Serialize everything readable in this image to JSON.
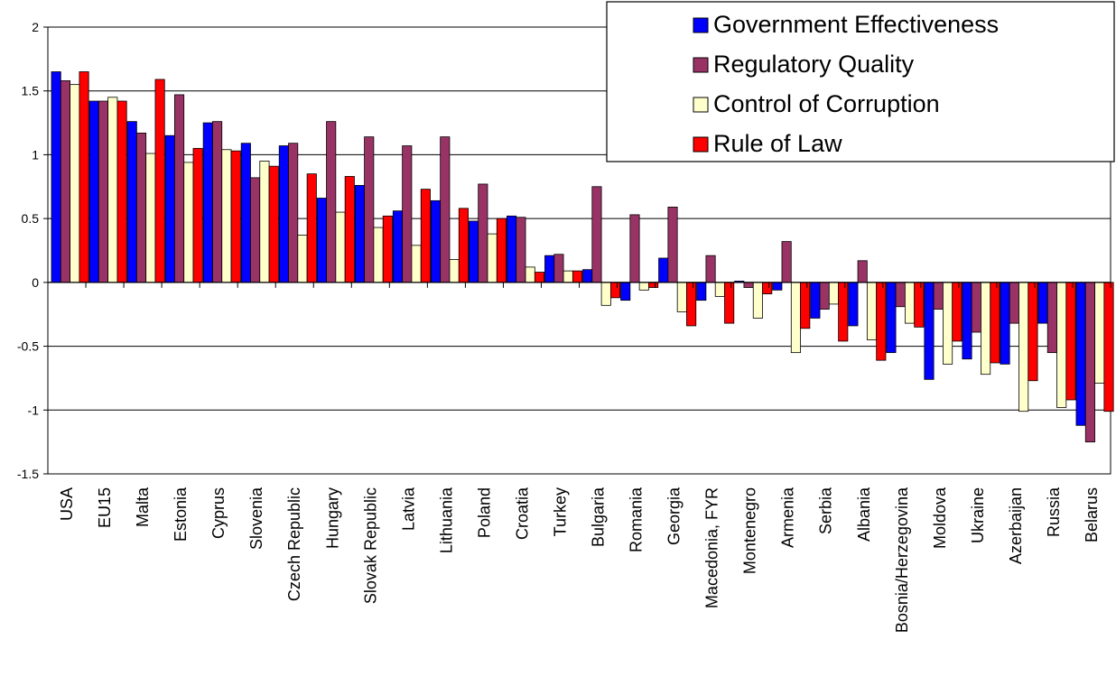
{
  "chart_data": {
    "type": "bar",
    "title": "",
    "xlabel": "",
    "ylabel": "",
    "ylim": [
      -1.5,
      2
    ],
    "yticks": [
      "2",
      "1.5",
      "1",
      "0.5",
      "0",
      "-0.5",
      "-1",
      "-1.5"
    ],
    "grid": "horizontal",
    "legend_position": "top-right",
    "categories": [
      "USA",
      "EU15",
      "Malta",
      "Estonia",
      "Cyprus",
      "Slovenia",
      "Czech Republic",
      "Hungary",
      "Slovak Republic",
      "Latvia",
      "Lithuania",
      "Poland",
      "Croatia",
      "Turkey",
      "Bulgaria",
      "Romania",
      "Georgia",
      "Macedonia, FYR",
      "Montenegro",
      "Armenia",
      "Serbia",
      "Albania",
      "Bosnia/Herzegovina",
      "Moldova",
      "Ukraine",
      "Azerbaijan",
      "Russia",
      "Belarus"
    ],
    "series": [
      {
        "name": "Government Effectiveness",
        "color": "#0000ff",
        "values": [
          1.65,
          1.42,
          1.26,
          1.15,
          1.25,
          1.09,
          1.07,
          0.66,
          0.76,
          0.56,
          0.64,
          0.48,
          0.52,
          0.21,
          0.1,
          -0.14,
          0.19,
          -0.14,
          0.01,
          -0.06,
          -0.28,
          -0.34,
          -0.55,
          -0.76,
          -0.6,
          -0.64,
          -0.32,
          -1.12
        ]
      },
      {
        "name": "Regulatory Quality",
        "color": "#993366",
        "values": [
          1.58,
          1.42,
          1.17,
          1.47,
          1.26,
          0.82,
          1.09,
          1.26,
          1.14,
          1.07,
          1.14,
          0.77,
          0.51,
          0.22,
          0.75,
          0.53,
          0.59,
          0.21,
          -0.04,
          0.32,
          -0.21,
          0.17,
          -0.19,
          -0.21,
          -0.39,
          -0.32,
          -0.55,
          -1.25
        ]
      },
      {
        "name": "Control of Corruption",
        "color": "#ffffcc",
        "values": [
          1.55,
          1.45,
          1.01,
          0.94,
          1.04,
          0.95,
          0.37,
          0.55,
          0.43,
          0.29,
          0.18,
          0.38,
          0.12,
          0.09,
          -0.18,
          -0.06,
          -0.23,
          -0.11,
          -0.28,
          -0.55,
          -0.17,
          -0.45,
          -0.32,
          -0.64,
          -0.72,
          -1.01,
          -0.98,
          -0.79
        ]
      },
      {
        "name": "Rule of Law",
        "color": "#ff0000",
        "values": [
          1.65,
          1.42,
          1.59,
          1.05,
          1.03,
          0.91,
          0.85,
          0.83,
          0.52,
          0.73,
          0.58,
          0.5,
          0.08,
          0.09,
          -0.12,
          -0.04,
          -0.34,
          -0.32,
          -0.09,
          -0.36,
          -0.46,
          -0.61,
          -0.35,
          -0.46,
          -0.63,
          -0.77,
          -0.92,
          -1.01
        ]
      }
    ]
  }
}
